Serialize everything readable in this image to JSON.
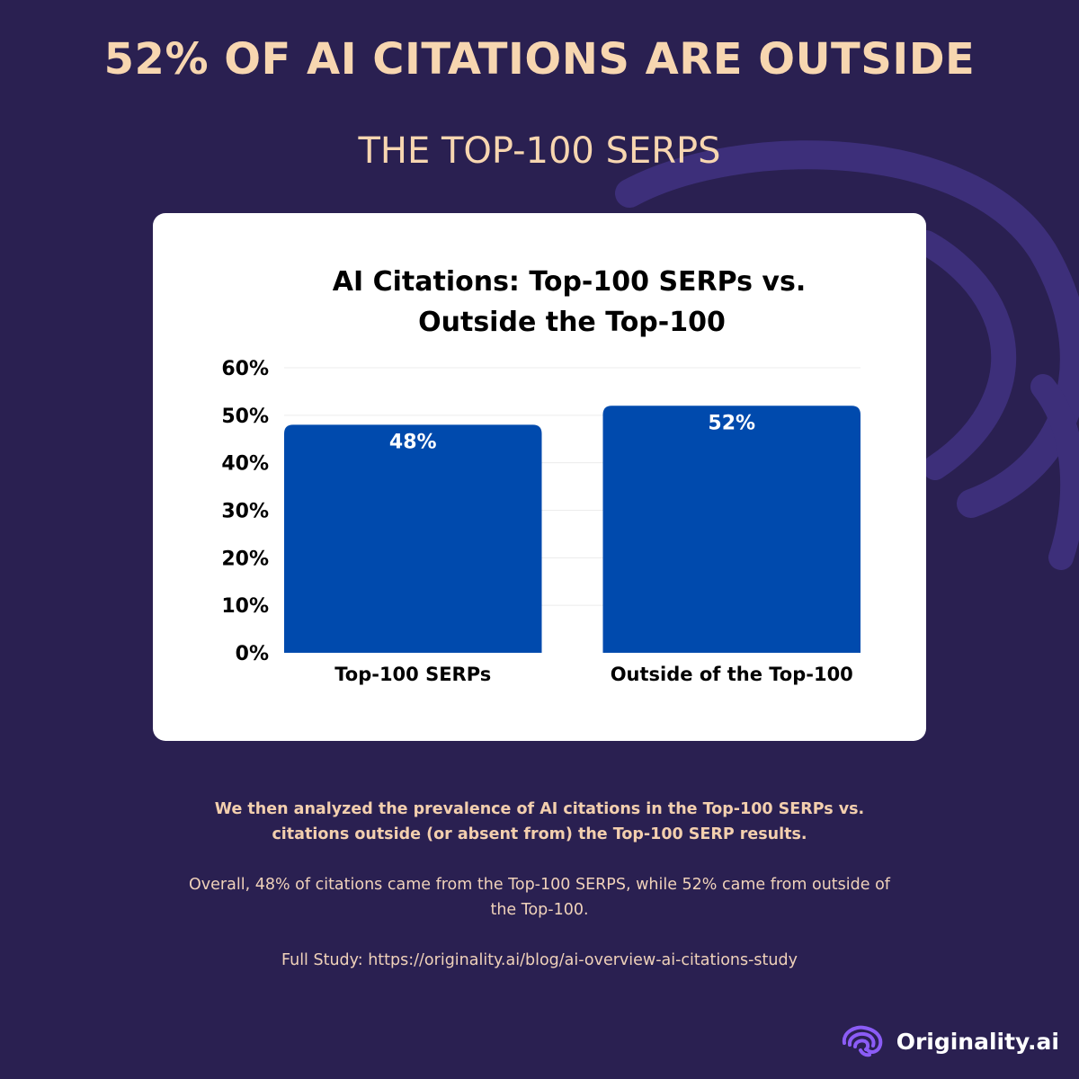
{
  "header": {
    "title": "52% OF AI CITATIONS ARE OUTSIDE",
    "subtitle": "THE TOP-100 SERPS"
  },
  "chart_data": {
    "type": "bar",
    "title_lines": [
      "AI Citations: Top-100 SERPs vs.",
      "Outside the Top-100"
    ],
    "categories": [
      "Top-100 SERPs",
      "Outside of the Top-100"
    ],
    "values": [
      48,
      52
    ],
    "value_labels": [
      "48%",
      "52%"
    ],
    "y_ticks": [
      "0%",
      "10%",
      "20%",
      "30%",
      "40%",
      "50%",
      "60%"
    ],
    "ylim": [
      0,
      60
    ],
    "bar_color": "#004aad",
    "grid": true,
    "legend": "none"
  },
  "caption": {
    "lead": "We then analyzed the prevalence of AI citations in the Top-100 SERPs vs. citations outside (or absent from) the Top-100 SERP results.",
    "body": "Overall, 48% of citations came from the Top-100 SERPS, while 52% came from outside of the Top-100.",
    "link": "Full Study: https://originality.ai/blog/ai-overview-ai-citations-study"
  },
  "brand": {
    "name": "Originality.ai",
    "icon": "brain-swirl-icon",
    "accent": "#8b5cf6"
  }
}
